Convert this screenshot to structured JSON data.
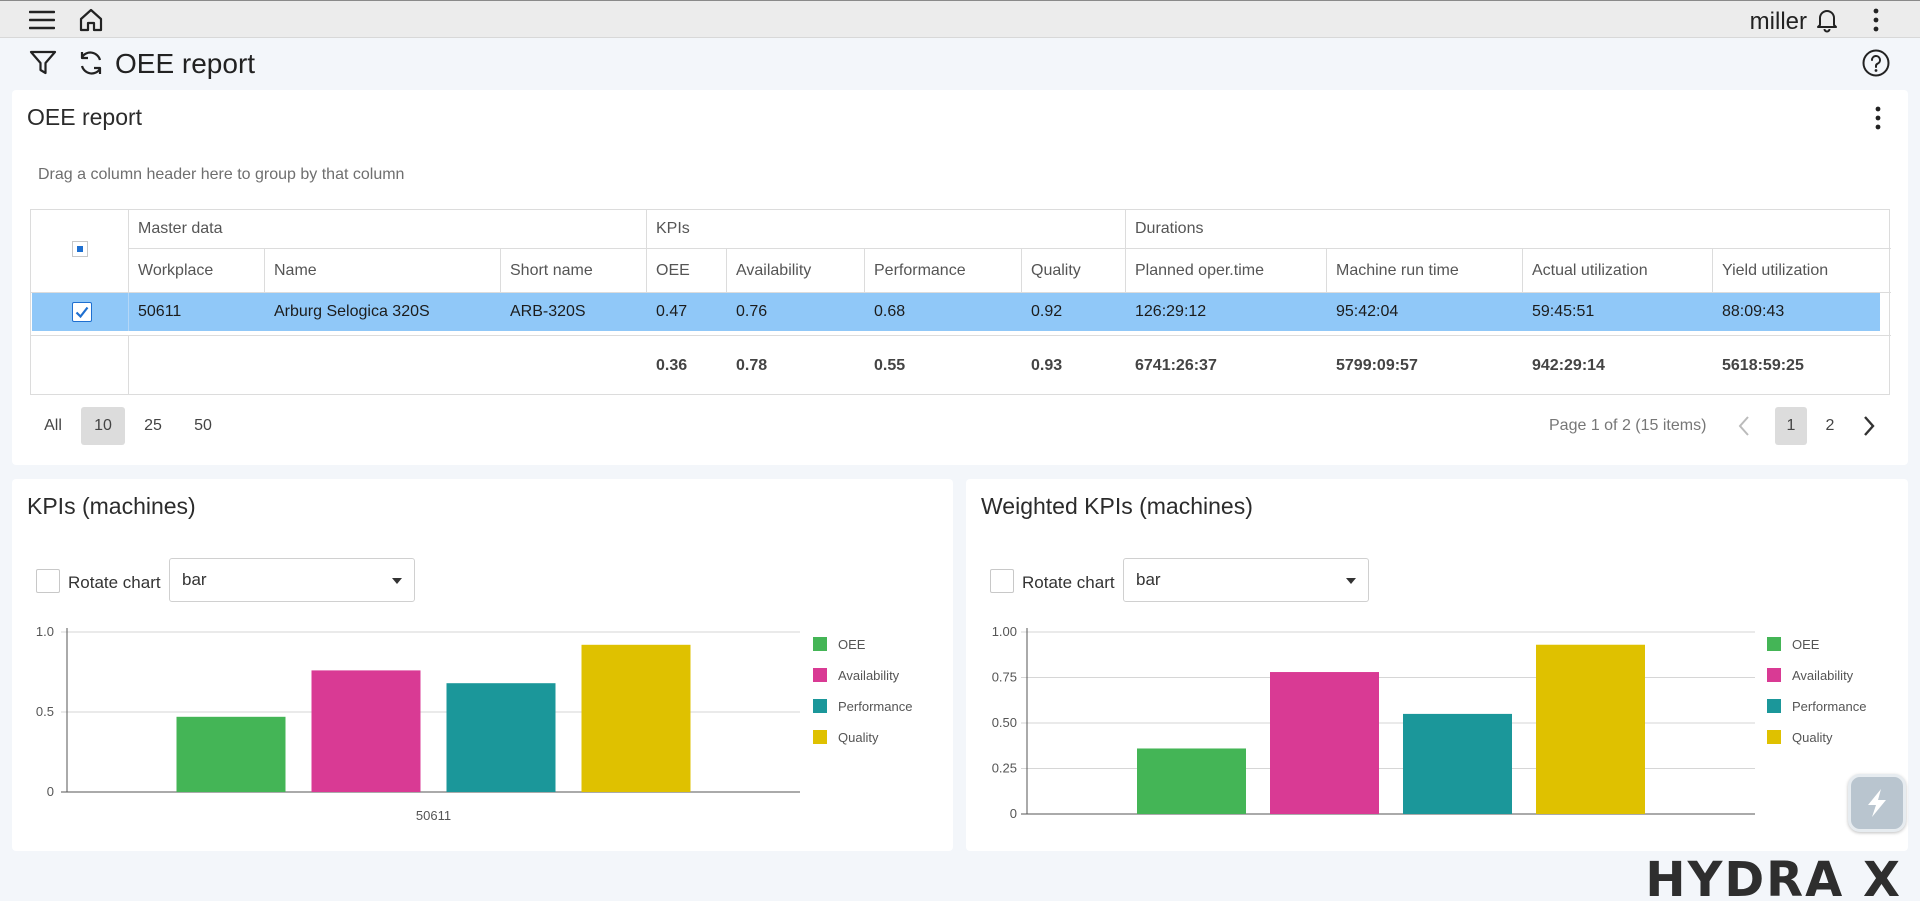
{
  "topbar": {
    "user": "miller"
  },
  "header": {
    "title": "OEE report"
  },
  "report": {
    "title": "OEE report",
    "group_hint": "Drag a column header here to group by that column",
    "groups": [
      "Master data",
      "KPIs",
      "Durations"
    ],
    "columns": [
      "Workplace",
      "Name",
      "Short name",
      "OEE",
      "Availability",
      "Performance",
      "Quality",
      "Planned oper.time",
      "Machine run time",
      "Actual utilization",
      "Yield utilization"
    ],
    "rows": [
      [
        "50611",
        "Arburg Selogica 320S",
        "ARB-320S",
        "0.47",
        "0.76",
        "0.68",
        "0.92",
        "126:29:12",
        "95:42:04",
        "59:45:51",
        "88:09:43"
      ]
    ],
    "summary": [
      "0.36",
      "0.78",
      "0.55",
      "0.93",
      "6741:26:37",
      "5799:09:57",
      "942:29:14",
      "5618:59:25"
    ],
    "page_sizes": [
      "All",
      "10",
      "25",
      "50"
    ],
    "page_size_selected": "10",
    "page_info": "Page 1 of 2 (15 items)",
    "pages": [
      "1",
      "2"
    ],
    "current_page": "1"
  },
  "kpi_panel": {
    "title": "KPIs (machines)",
    "rotate_label": "Rotate chart",
    "chart_type": "bar"
  },
  "weighted_panel": {
    "title": "Weighted KPIs (machines)",
    "rotate_label": "Rotate chart",
    "chart_type": "bar"
  },
  "colors": {
    "OEE": "#44b556",
    "Availability": "#d93a94",
    "Performance": "#1b979a",
    "Quality": "#dfc100",
    "selection": "#90c8f8"
  },
  "brand": "HYDRA X",
  "chart_data": [
    {
      "type": "bar",
      "categories": [
        "50611"
      ],
      "series": [
        {
          "name": "OEE",
          "values": [
            0.47
          ]
        },
        {
          "name": "Availability",
          "values": [
            0.76
          ]
        },
        {
          "name": "Performance",
          "values": [
            0.68
          ]
        },
        {
          "name": "Quality",
          "values": [
            0.92
          ]
        }
      ],
      "yticks": [
        "0",
        "0.5",
        "1.0"
      ],
      "ylim": [
        0,
        1
      ],
      "legend": "right",
      "grid": true
    },
    {
      "type": "bar",
      "categories": [
        ""
      ],
      "series": [
        {
          "name": "OEE",
          "values": [
            0.36
          ]
        },
        {
          "name": "Availability",
          "values": [
            0.78
          ]
        },
        {
          "name": "Performance",
          "values": [
            0.55
          ]
        },
        {
          "name": "Quality",
          "values": [
            0.93
          ]
        }
      ],
      "yticks": [
        "0",
        "0.25",
        "0.50",
        "0.75",
        "1.00"
      ],
      "ylim": [
        0,
        1
      ],
      "legend": "right",
      "grid": true
    }
  ]
}
